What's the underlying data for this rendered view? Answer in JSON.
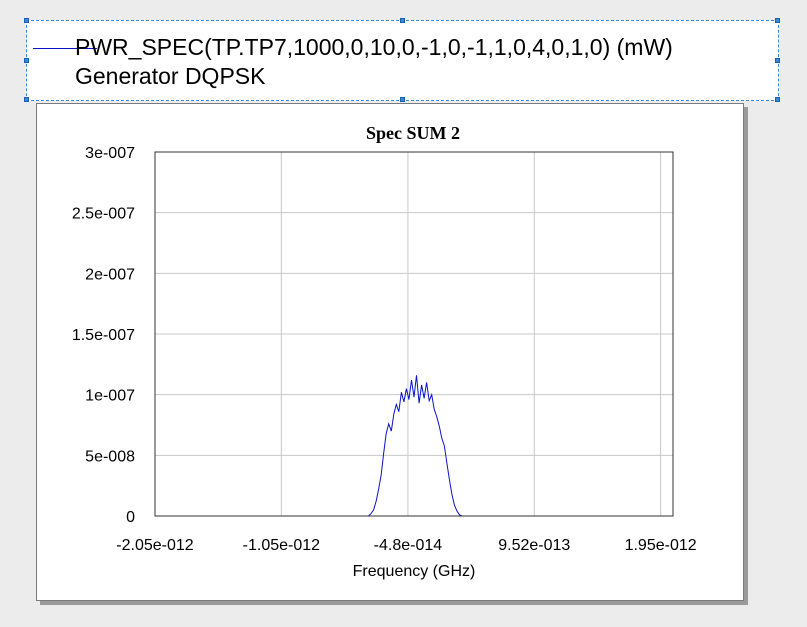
{
  "legend": {
    "line1": "PWR_SPEC(TP.TP7,1000,0,10,0,-1,0,-1,1,0,4,0,1,0) (mW)",
    "line2": "Generator DQPSK"
  },
  "chart_data": {
    "type": "line",
    "title": "Spec SUM 2",
    "xlabel": "Frequency (GHz)",
    "ylabel": "",
    "x_tick_labels": [
      "-2.05e-012",
      "-1.05e-012",
      "-4.8e-014",
      "9.52e-013",
      "1.95e-012"
    ],
    "x_tick_values": [
      -2.05e-12,
      -1.05e-12,
      -4.8e-14,
      9.52e-13,
      1.952e-12
    ],
    "y_tick_labels": [
      "0",
      "5e-008",
      "1e-007",
      "1.5e-007",
      "2e-007",
      "2.5e-007",
      "3e-007"
    ],
    "y_tick_values": [
      0,
      5e-08,
      1e-07,
      1.5e-07,
      2e-07,
      2.5e-07,
      3e-07
    ],
    "xlim": [
      -2.05e-12,
      2.05e-12
    ],
    "ylim": [
      0,
      3e-07
    ],
    "grid": true,
    "line_color": "#0a12c8",
    "series": [
      {
        "x": [
          -3.6e-13,
          -3.4e-13,
          -3.2e-13,
          -3e-13,
          -2.8e-13,
          -2.6e-13,
          -2.4e-13,
          -2.2e-13,
          -2e-13,
          -1.8e-13,
          -1.6e-13,
          -1.4e-13,
          -1.2e-13,
          -1e-13,
          -8e-14,
          -6e-14,
          -4e-14,
          -2e-14,
          0,
          2e-14,
          4e-14,
          6e-14,
          8e-14,
          1e-13,
          1.2e-13,
          1.4e-13,
          1.6e-13,
          1.8e-13,
          2e-13,
          2.2e-13,
          2.4e-13,
          2.6e-13,
          2.8e-13,
          3e-13,
          3.2e-13,
          3.4e-13,
          3.6e-13,
          3.8e-13
        ],
        "values": [
          0,
          2e-09,
          5e-09,
          1.2e-08,
          2.2e-08,
          3.4e-08,
          5.2e-08,
          6.8e-08,
          7.6e-08,
          7e-08,
          8.4e-08,
          9.2e-08,
          8.6e-08,
          1.02e-07,
          9.4e-08,
          1.05e-07,
          9.6e-08,
          1.12e-07,
          9.8e-08,
          1.16e-07,
          9.3e-08,
          1.08e-07,
          9.7e-08,
          1.1e-07,
          9.5e-08,
          1e-07,
          8.8e-08,
          8.2e-08,
          7.4e-08,
          6.4e-08,
          5.8e-08,
          4.4e-08,
          3e-08,
          1.8e-08,
          9e-09,
          4e-09,
          1e-09,
          0
        ]
      }
    ]
  }
}
